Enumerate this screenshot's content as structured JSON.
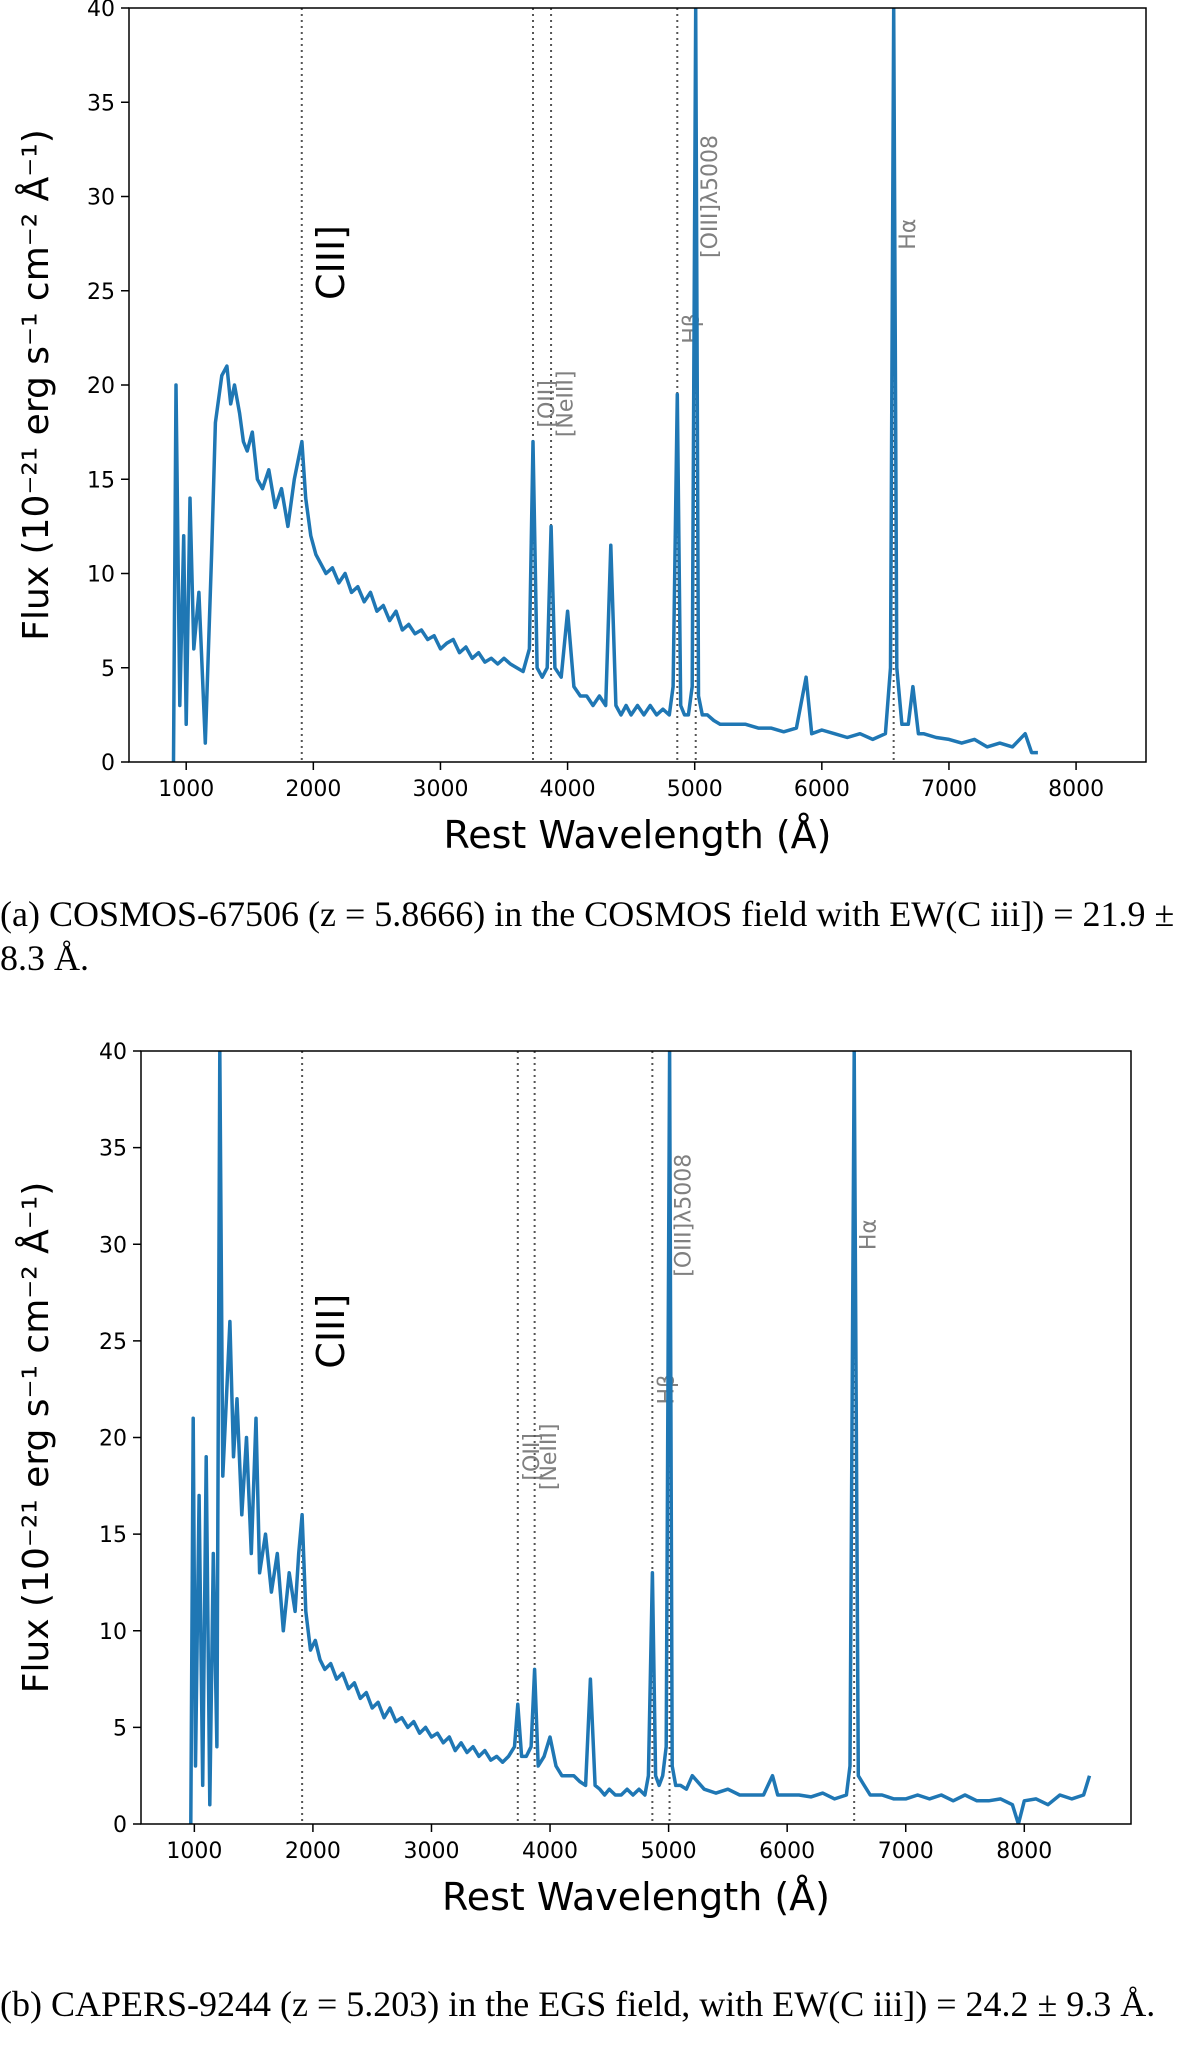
{
  "chart_data": [
    {
      "type": "line",
      "panel": "a",
      "xlabel": "Rest Wavelength (Å)",
      "ylabel": "Flux (10⁻²¹ erg s⁻¹ cm⁻² Å⁻¹)",
      "xlim": [
        550,
        8550
      ],
      "ylim": [
        0,
        40
      ],
      "xticks": [
        1000,
        2000,
        3000,
        4000,
        5000,
        6000,
        7000,
        8000
      ],
      "yticks": [
        0,
        5,
        10,
        15,
        20,
        25,
        30,
        35,
        40
      ],
      "line_color": "#1f77b4",
      "lines": [
        {
          "label": "CIII]",
          "wavelength": 1909,
          "size": "large",
          "label_y": 26.5
        },
        {
          "label": "[OII]",
          "wavelength": 3728,
          "size": "small",
          "label_y": 19
        },
        {
          "label": "[NeIII]",
          "wavelength": 3870,
          "size": "small",
          "label_y": 19
        },
        {
          "label": "Hβ",
          "wavelength": 4863,
          "size": "small",
          "label_y": 23
        },
        {
          "label": "[OIII]λ5008",
          "wavelength": 5008,
          "size": "small",
          "label_y": 30
        },
        {
          "label": "Hα",
          "wavelength": 6565,
          "size": "small",
          "label_y": 28
        }
      ],
      "series": [
        {
          "x": [
            900,
            920,
            950,
            980,
            1000,
            1030,
            1060,
            1100,
            1150,
            1200,
            1230,
            1280,
            1320,
            1350,
            1380,
            1420,
            1450,
            1480,
            1520,
            1560,
            1600,
            1650,
            1700,
            1750,
            1800,
            1850,
            1880,
            1910,
            1940,
            1980,
            2020,
            2060,
            2100,
            2150,
            2200,
            2250,
            2300,
            2350,
            2400,
            2450,
            2500,
            2550,
            2600,
            2650,
            2700,
            2750,
            2800,
            2850,
            2900,
            2950,
            3000,
            3050,
            3100,
            3150,
            3200,
            3250,
            3300,
            3350,
            3400,
            3450,
            3500,
            3550,
            3600,
            3650,
            3700,
            3728,
            3760,
            3800,
            3840,
            3870,
            3900,
            3950,
            4000,
            4050,
            4100,
            4150,
            4200,
            4250,
            4300,
            4340,
            4380,
            4420,
            4460,
            4500,
            4550,
            4600,
            4650,
            4700,
            4750,
            4800,
            4830,
            4863,
            4890,
            4920,
            4950,
            4980,
            5008,
            5030,
            5060,
            5100,
            5150,
            5200,
            5300,
            5400,
            5500,
            5600,
            5700,
            5800,
            5876,
            5920,
            6000,
            6100,
            6200,
            6300,
            6400,
            6500,
            6540,
            6565,
            6590,
            6630,
            6680,
            6716,
            6760,
            6800,
            6900,
            7000,
            7100,
            7200,
            7300,
            7400,
            7500,
            7600,
            7650,
            7700
          ],
          "y": [
            0,
            20,
            3,
            12,
            2,
            14,
            6,
            9,
            1,
            11,
            18,
            20.5,
            21,
            19,
            20,
            18.5,
            17,
            16.5,
            17.5,
            15,
            14.5,
            15.5,
            13.5,
            14.5,
            12.5,
            15,
            16,
            17,
            14,
            12,
            11,
            10.5,
            10,
            10.3,
            9.5,
            10,
            9,
            9.3,
            8.5,
            9,
            8,
            8.3,
            7.5,
            8,
            7,
            7.3,
            6.8,
            7,
            6.5,
            6.7,
            6,
            6.3,
            6.5,
            5.8,
            6.1,
            5.5,
            5.8,
            5.3,
            5.5,
            5.2,
            5.5,
            5.2,
            5,
            4.8,
            6,
            17,
            5,
            4.5,
            5,
            12.5,
            5,
            4.5,
            8,
            4,
            3.5,
            3.5,
            3,
            3.5,
            3,
            11.5,
            3,
            2.5,
            3,
            2.5,
            3,
            2.5,
            3,
            2.5,
            2.8,
            2.5,
            4,
            19.5,
            3,
            2.5,
            2.5,
            4,
            40,
            3.5,
            2.5,
            2.5,
            2.2,
            2,
            2,
            2,
            1.8,
            1.8,
            1.6,
            1.8,
            4.5,
            1.5,
            1.7,
            1.5,
            1.3,
            1.5,
            1.2,
            1.5,
            5,
            40,
            5,
            2,
            2,
            4,
            1.5,
            1.5,
            1.3,
            1.2,
            1.0,
            1.2,
            0.8,
            1.0,
            0.8,
            1.5,
            0.5,
            0.5
          ]
        }
      ]
    },
    {
      "type": "line",
      "panel": "b",
      "xlabel": "Rest Wavelength (Å)",
      "ylabel": "Flux (10⁻²¹ erg s⁻¹ cm⁻² Å⁻¹)",
      "xlim": [
        550,
        8900
      ],
      "ylim": [
        0,
        40
      ],
      "xticks": [
        1000,
        2000,
        3000,
        4000,
        5000,
        6000,
        7000,
        8000
      ],
      "yticks": [
        0,
        5,
        10,
        15,
        20,
        25,
        30,
        35,
        40
      ],
      "line_color": "#1f77b4",
      "lines": [
        {
          "label": "CIII]",
          "wavelength": 1909,
          "size": "large",
          "label_y": 25.5
        },
        {
          "label": "[OII]",
          "wavelength": 3728,
          "size": "small",
          "label_y": 19
        },
        {
          "label": "[NeIII]",
          "wavelength": 3870,
          "size": "small",
          "label_y": 19
        },
        {
          "label": "Hβ",
          "wavelength": 4863,
          "size": "small",
          "label_y": 22.5
        },
        {
          "label": "[OIII]λ5008",
          "wavelength": 5008,
          "size": "small",
          "label_y": 31.5
        },
        {
          "label": "Hα",
          "wavelength": 6565,
          "size": "small",
          "label_y": 30.5
        }
      ],
      "series": [
        {
          "x": [
            970,
            990,
            1010,
            1040,
            1070,
            1100,
            1130,
            1160,
            1190,
            1215,
            1240,
            1270,
            1300,
            1330,
            1360,
            1400,
            1440,
            1480,
            1520,
            1550,
            1600,
            1650,
            1700,
            1750,
            1800,
            1850,
            1880,
            1909,
            1940,
            1980,
            2020,
            2060,
            2100,
            2150,
            2200,
            2250,
            2300,
            2350,
            2400,
            2450,
            2500,
            2550,
            2600,
            2650,
            2700,
            2750,
            2800,
            2850,
            2900,
            2950,
            3000,
            3050,
            3100,
            3150,
            3200,
            3250,
            3300,
            3350,
            3400,
            3450,
            3500,
            3550,
            3600,
            3650,
            3700,
            3728,
            3760,
            3800,
            3840,
            3870,
            3900,
            3950,
            4000,
            4050,
            4100,
            4150,
            4200,
            4250,
            4300,
            4340,
            4380,
            4420,
            4460,
            4500,
            4550,
            4600,
            4650,
            4700,
            4750,
            4800,
            4830,
            4863,
            4890,
            4920,
            4950,
            4980,
            5008,
            5030,
            5060,
            5100,
            5150,
            5200,
            5300,
            5400,
            5500,
            5600,
            5700,
            5800,
            5876,
            5920,
            6000,
            6100,
            6200,
            6300,
            6400,
            6500,
            6530,
            6565,
            6600,
            6650,
            6700,
            6800,
            6900,
            7000,
            7100,
            7200,
            7300,
            7400,
            7500,
            7600,
            7700,
            7800,
            7900,
            7950,
            8000,
            8100,
            8200,
            8300,
            8400,
            8500,
            8550
          ],
          "y": [
            0,
            21,
            3,
            17,
            2,
            19,
            1,
            14,
            4,
            40,
            18,
            22,
            26,
            19,
            22,
            16,
            20,
            14,
            21,
            13,
            15,
            12,
            14,
            10,
            13,
            11,
            14,
            16,
            11,
            9,
            9.5,
            8.5,
            8,
            8.3,
            7.5,
            7.8,
            7,
            7.3,
            6.5,
            6.8,
            6,
            6.3,
            5.5,
            6,
            5.3,
            5.5,
            5,
            5.3,
            4.7,
            5,
            4.5,
            4.7,
            4.2,
            4.5,
            3.8,
            4.2,
            3.7,
            4,
            3.5,
            3.8,
            3.3,
            3.5,
            3.2,
            3.5,
            4,
            6.2,
            3.5,
            3.5,
            4,
            8,
            3,
            3.5,
            4.5,
            3,
            2.5,
            2.5,
            2.5,
            2.2,
            2,
            7.5,
            2,
            1.8,
            1.5,
            1.8,
            1.5,
            1.5,
            1.8,
            1.5,
            1.8,
            1.5,
            2.5,
            13,
            2.5,
            2,
            2.5,
            4,
            40,
            3,
            2,
            2,
            1.8,
            2.5,
            1.8,
            1.6,
            1.8,
            1.5,
            1.5,
            1.5,
            2.5,
            1.5,
            1.5,
            1.5,
            1.4,
            1.6,
            1.3,
            1.5,
            3,
            40,
            2.5,
            2,
            1.5,
            1.5,
            1.3,
            1.3,
            1.5,
            1.3,
            1.5,
            1.2,
            1.5,
            1.2,
            1.2,
            1.3,
            1.0,
            0,
            1.2,
            1.3,
            1.0,
            1.5,
            1.3,
            1.5,
            2.5
          ]
        }
      ]
    }
  ],
  "captions": {
    "a": "(a) COSMOS-67506 (z = 5.8666) in the COSMOS field with EW(C iii]) = 21.9 ± 8.3 Å.",
    "b": "(b) CAPERS-9244 (z = 5.203) in the EGS field, with EW(C iii]) = 24.2 ± 9.3 Å."
  }
}
